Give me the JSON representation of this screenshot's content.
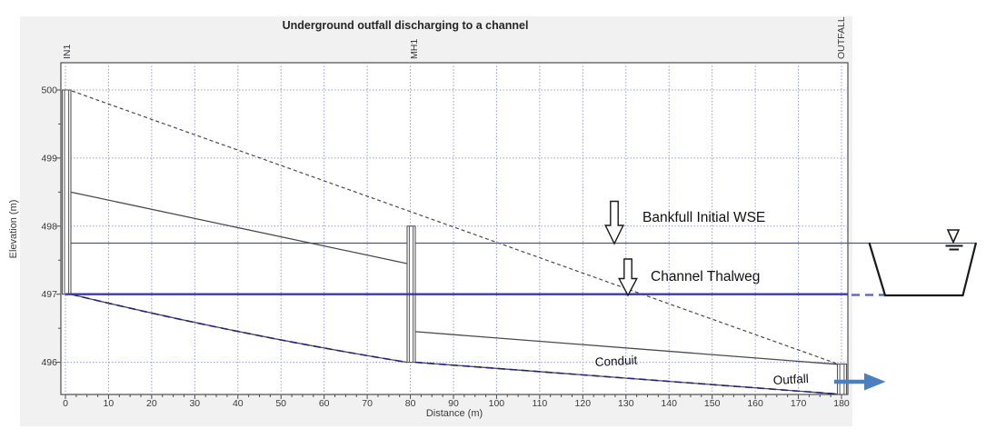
{
  "chart_data": {
    "type": "line",
    "title": "Underground outfall discharging to a channel",
    "xlabel": "Distance (m)",
    "ylabel": "Elevation (m)",
    "xlim": [
      0,
      180
    ],
    "ylim": [
      495.5,
      500.4
    ],
    "grid": true,
    "x_tick_labels": [
      "0",
      "10",
      "20",
      "30",
      "40",
      "50",
      "60",
      "70",
      "80",
      "90",
      "100",
      "110",
      "120",
      "130",
      "140",
      "150",
      "160",
      "170",
      "180"
    ],
    "y_tick_labels": [
      "500",
      "499",
      "498",
      "497",
      "496"
    ],
    "nodes": [
      {
        "label": "IN1",
        "station": 0,
        "top_elevation": 500.0,
        "invert_elevation": 497.0
      },
      {
        "label": "MH1",
        "station": 80,
        "top_elevation": 498.0,
        "invert_elevation": 496.0
      },
      {
        "label": "OUTFALL",
        "station": 180,
        "top_elevation": 496.0,
        "invert_elevation": 495.5
      }
    ],
    "series": [
      {
        "name": "Ground surface (dashed)",
        "x": [
          0,
          180
        ],
        "y": [
          500.0,
          496.0
        ]
      },
      {
        "name": "Conduit 1 crown",
        "x": [
          0,
          80
        ],
        "y": [
          498.5,
          497.45
        ]
      },
      {
        "name": "Conduit 1 invert",
        "x": [
          0,
          80
        ],
        "y": [
          497.0,
          496.0
        ]
      },
      {
        "name": "Conduit 2 crown",
        "x": [
          80,
          180
        ],
        "y": [
          496.45,
          496.0
        ]
      },
      {
        "name": "Conduit 2 invert",
        "x": [
          80,
          180
        ],
        "y": [
          496.0,
          495.5
        ]
      },
      {
        "name": "Bankfull Initial WSE",
        "x": [
          0,
          180
        ],
        "y": [
          497.75,
          497.75
        ]
      },
      {
        "name": "Channel Thalweg",
        "x": [
          0,
          180
        ],
        "y": [
          497.0,
          497.0
        ]
      }
    ]
  },
  "annotations": {
    "bankfull": "Bankfull Initial WSE",
    "thalweg": "Channel Thalweg",
    "conduit": "Conduit",
    "outfall": "Outfall"
  },
  "colors": {
    "panel_bg": "#f1f1f1",
    "grid": "#9c9cdf",
    "profile_line": "#4a4a4a",
    "thalweg_line": "#3a3aad",
    "wse_line": "#4455b0",
    "hgl_dash": "#20208a",
    "thalweg_dash_ext": "#5b6bd6",
    "outfall_arrow": "#4a80c2"
  }
}
